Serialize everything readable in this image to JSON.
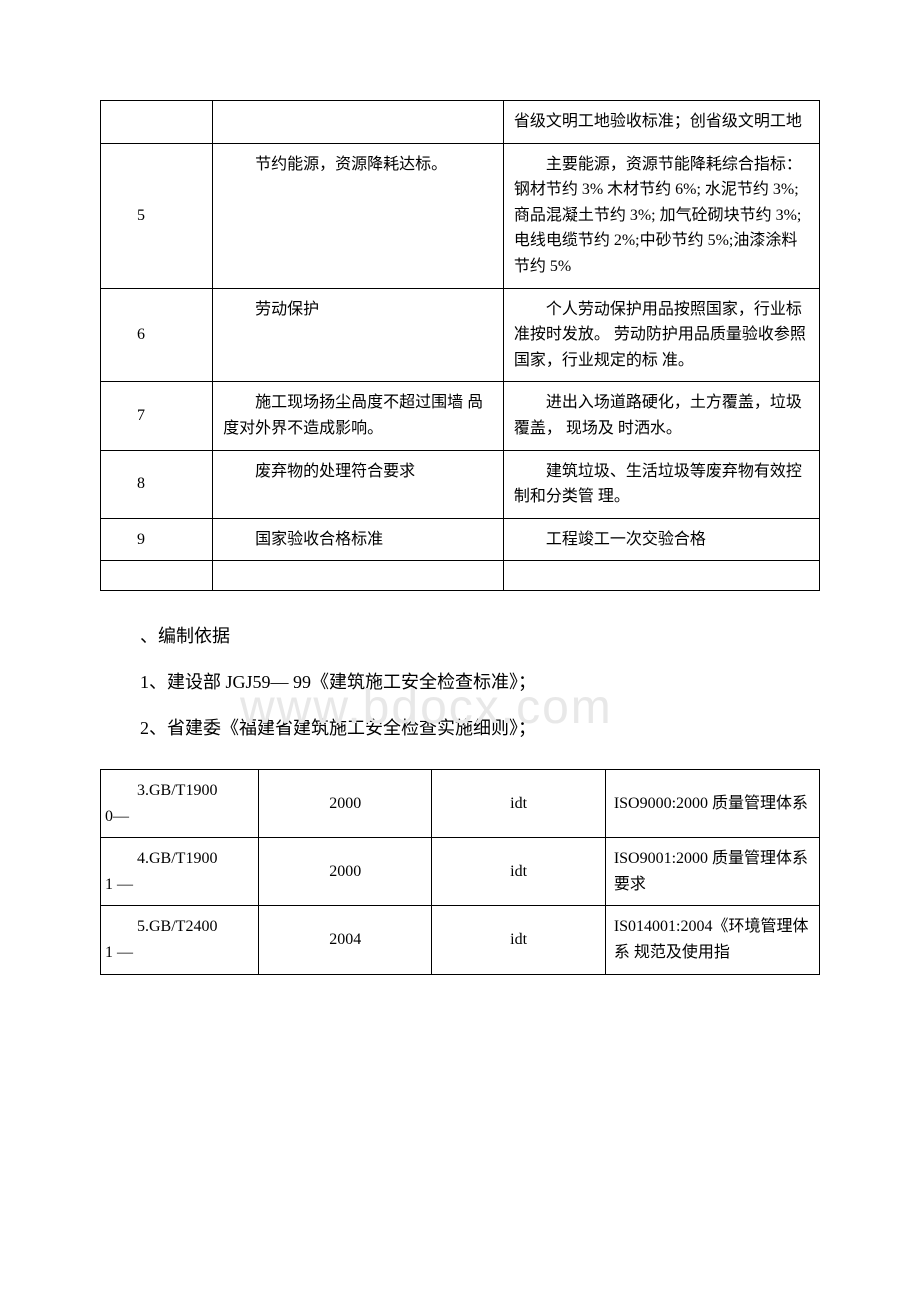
{
  "watermark": "www.bdocx.com",
  "table1": {
    "rows": [
      {
        "num": "",
        "mid": "",
        "right": "省级文明工地验收标准；创省级文明工地"
      },
      {
        "num": "5",
        "mid_indent": "节约能源，资源降耗达标。",
        "right_indent": "主要能源，资源节能降耗综合指标：钢材节约 3% 木材节约 6%; 水泥节约 3%;商品混凝土节约 3%; 加气砼砌块节约 3%;电线电缆节约 2%;中砂节约 5%;油漆涂料节约 5%"
      },
      {
        "num": "6",
        "mid_indent": "劳动保护",
        "right_indent": "个人劳动保护用品按照国家，行业标准按时发放。 劳动防护用品质量验收参照国家，行业规定的标 准。"
      },
      {
        "num": "7",
        "mid_indent": "施工现场扬尘咼度不超过围墙 咼度对外界不造成影响。",
        "right_indent": "进出入场道路硬化，土方覆盖，垃圾覆盖， 现场及 时洒水。"
      },
      {
        "num": "8",
        "mid_indent": "废弃物的处理符合要求",
        "right_indent": "建筑垃圾、生活垃圾等废弃物有效控制和分类管 理。"
      },
      {
        "num": "9",
        "mid_indent": "国家验收合格标准",
        "right_indent": "工程竣工一次交验合格"
      }
    ]
  },
  "paragraphs": {
    "p1": "、编制依据",
    "p2": "1、建设部 JGJ59— 99《建筑施工安全检查标准》；",
    "p3": "2、省建委《福建省建筑施工安全检查实施细则》；"
  },
  "table2": {
    "rows": [
      {
        "c1_first": "3.GB/T1900",
        "c1_rest": "0—",
        "c2": "2000",
        "c3": "idt",
        "c4_first": "ISO9000:20",
        "c4_rest": "00 质量管理体系"
      },
      {
        "c1_first": "4.GB/T1900",
        "c1_rest": "1 —",
        "c2": "2000",
        "c3": "idt",
        "c4_first": "ISO9001:20",
        "c4_rest": "00 质量管理体系要求"
      },
      {
        "c1_first": "5.GB/T2400",
        "c1_rest": "1 —",
        "c2": "2004",
        "c3": "idt",
        "c4_first": "IS014001:20",
        "c4_rest": "04《环境管理体系 规范及使用指"
      }
    ]
  }
}
